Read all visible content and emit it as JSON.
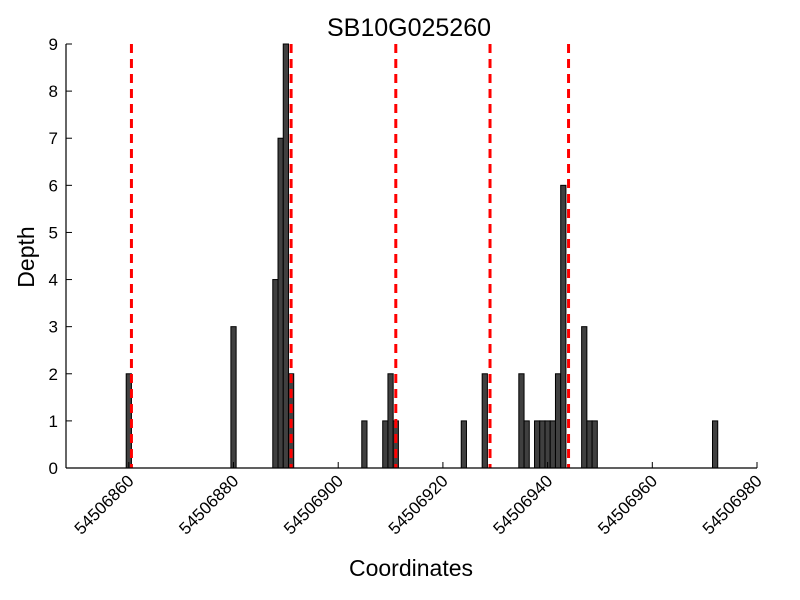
{
  "chart_data": {
    "type": "bar",
    "title": "SB10G025260",
    "xlabel": "Coordinates",
    "ylabel": "Depth",
    "xlim": [
      54506848,
      54506980
    ],
    "ylim": [
      0,
      9
    ],
    "xticks": [
      54506860,
      54506880,
      54506900,
      54506920,
      54506940,
      54506960,
      54506980
    ],
    "yticks": [
      0,
      1,
      2,
      3,
      4,
      5,
      6,
      7,
      8,
      9
    ],
    "bar_width": 1,
    "bar_color": "#404040",
    "line_color": "#ff0000",
    "grid": false,
    "bars": [
      {
        "x": 54506860,
        "y": 2
      },
      {
        "x": 54506880,
        "y": 3
      },
      {
        "x": 54506888,
        "y": 4
      },
      {
        "x": 54506889,
        "y": 7
      },
      {
        "x": 54506890,
        "y": 9
      },
      {
        "x": 54506891,
        "y": 2
      },
      {
        "x": 54506905,
        "y": 1
      },
      {
        "x": 54506909,
        "y": 1
      },
      {
        "x": 54506910,
        "y": 2
      },
      {
        "x": 54506911,
        "y": 1
      },
      {
        "x": 54506924,
        "y": 1
      },
      {
        "x": 54506928,
        "y": 2
      },
      {
        "x": 54506935,
        "y": 2
      },
      {
        "x": 54506936,
        "y": 1
      },
      {
        "x": 54506938,
        "y": 1
      },
      {
        "x": 54506939,
        "y": 1
      },
      {
        "x": 54506940,
        "y": 1
      },
      {
        "x": 54506941,
        "y": 1
      },
      {
        "x": 54506942,
        "y": 2
      },
      {
        "x": 54506943,
        "y": 6
      },
      {
        "x": 54506947,
        "y": 3
      },
      {
        "x": 54506948,
        "y": 1
      },
      {
        "x": 54506949,
        "y": 1
      },
      {
        "x": 54506972,
        "y": 1
      }
    ],
    "vlines": [
      54506860.5,
      54506891,
      54506911,
      54506929,
      54506944
    ]
  }
}
